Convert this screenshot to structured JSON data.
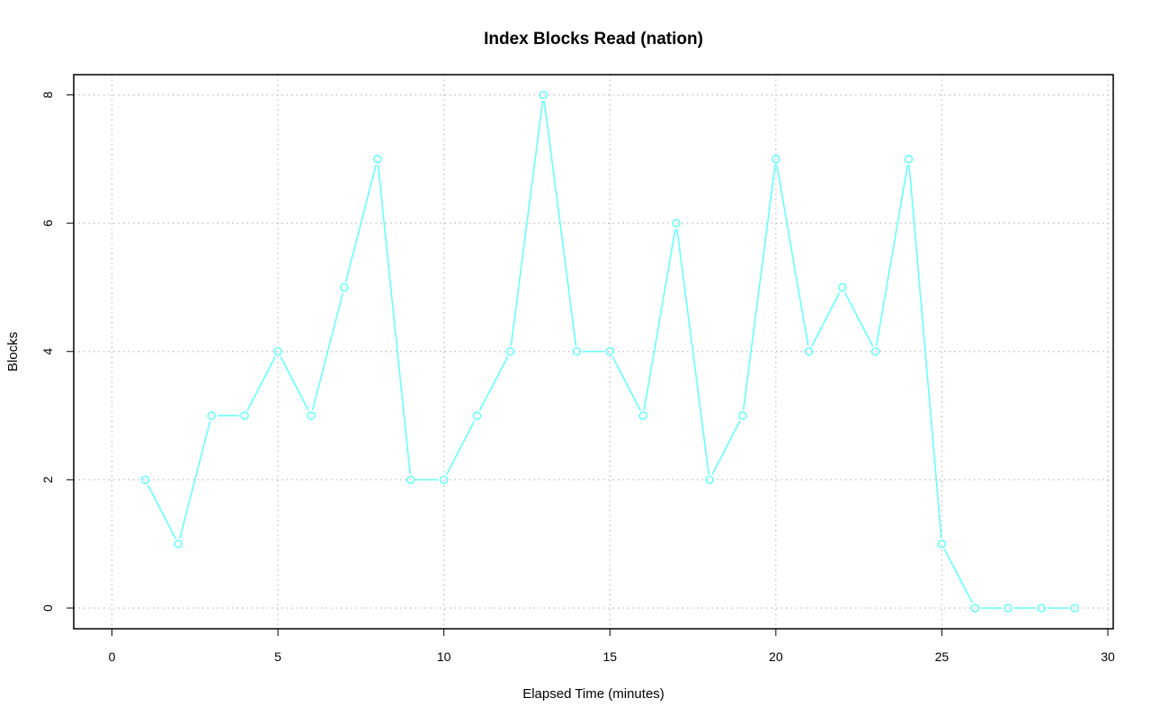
{
  "chart_data": {
    "type": "line",
    "title": "Index Blocks Read (nation)",
    "xlabel": "Elapsed Time (minutes)",
    "ylabel": "Blocks",
    "xlim": [
      0,
      30
    ],
    "ylim": [
      0,
      8
    ],
    "x_ticks": [
      "0",
      "5",
      "10",
      "15",
      "20",
      "25",
      "30"
    ],
    "y_ticks": [
      "0",
      "2",
      "4",
      "6",
      "8"
    ],
    "grid": true,
    "legend": "none",
    "series": [
      {
        "color": "#66ffff",
        "marker": "open-circle",
        "x": [
          1,
          2,
          3,
          4,
          5,
          6,
          7,
          8,
          9,
          10,
          11,
          12,
          13,
          14,
          15,
          16,
          17,
          18,
          19,
          20,
          21,
          22,
          23,
          24,
          25,
          26,
          27,
          28,
          29
        ],
        "values": [
          2,
          1,
          3,
          3,
          4,
          3,
          5,
          7,
          2,
          2,
          3,
          4,
          8,
          4,
          4,
          3,
          6,
          2,
          3,
          7,
          4,
          5,
          4,
          7,
          1,
          0,
          0,
          0,
          0
        ]
      }
    ]
  }
}
